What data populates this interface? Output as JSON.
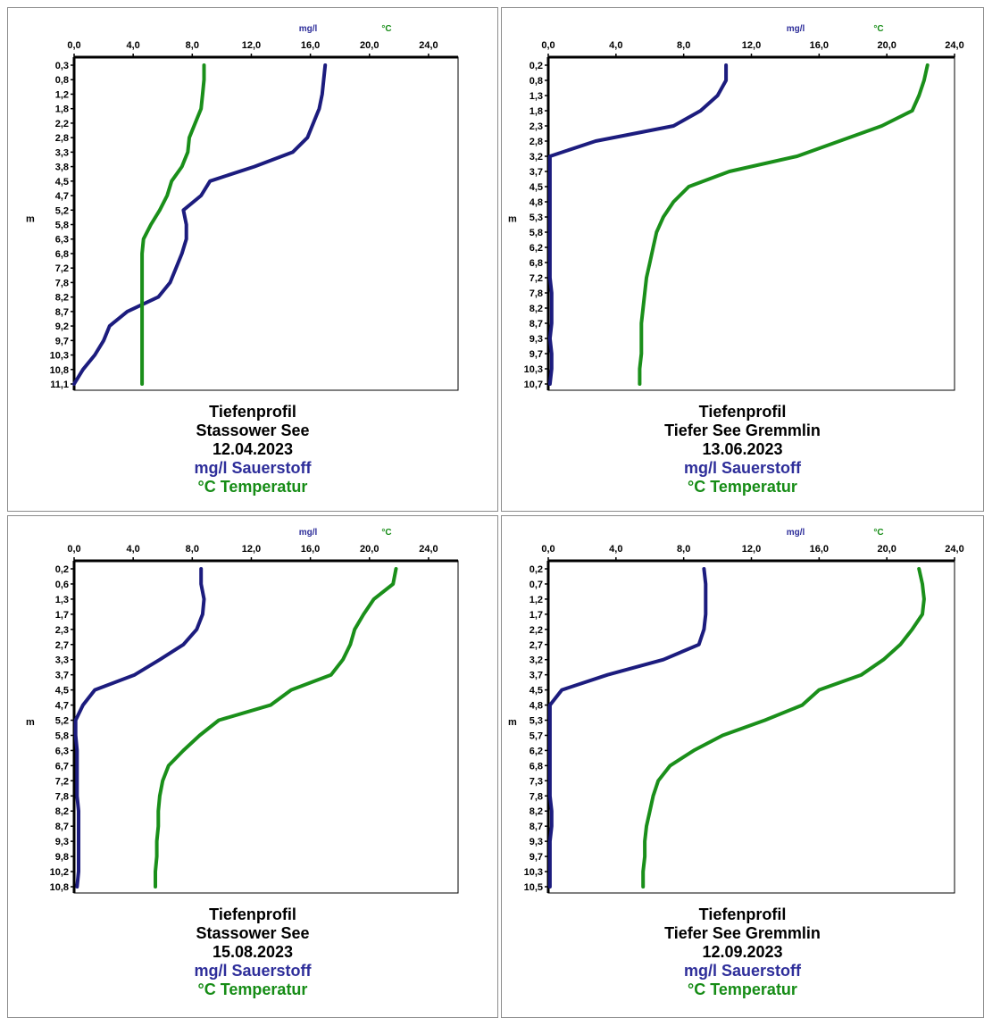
{
  "colors": {
    "oxygen": "#1c1c7e",
    "temperature": "#1a8f1a",
    "oxygen_text": "#2e2e9a",
    "temperature_text": "#168c16"
  },
  "chart_data": [
    {
      "type": "line",
      "title": "Tiefenprofil",
      "lake": "Stassower See",
      "date": "12.04.2023",
      "legend_oxygen": "mg/l Sauerstoff",
      "legend_temperature": "°C Temperatur",
      "unit_oxygen": "mg/l",
      "unit_temperature": "°C",
      "ylabel": "m",
      "xlim": [
        0,
        26
      ],
      "x_ticks": [
        "0,0",
        "4,0",
        "8,0",
        "12,0",
        "16,0",
        "20,0",
        "24,0"
      ],
      "depth_labels": [
        "0,3",
        "0,8",
        "1,2",
        "1,8",
        "2,2",
        "2,8",
        "3,3",
        "3,8",
        "4,5",
        "4,7",
        "5,2",
        "5,8",
        "6,3",
        "6,8",
        "7,2",
        "7,8",
        "8,2",
        "8,7",
        "9,2",
        "9,7",
        "10,3",
        "10,8",
        "11,1"
      ],
      "series": [
        {
          "name": "mg/l Sauerstoff",
          "values": [
            17.0,
            16.9,
            16.8,
            16.6,
            16.2,
            15.8,
            14.8,
            12.2,
            9.2,
            8.6,
            7.4,
            7.6,
            7.6,
            7.3,
            6.9,
            6.5,
            5.7,
            3.6,
            2.4,
            2.0,
            1.4,
            0.6,
            0.0
          ]
        },
        {
          "name": "°C Temperatur",
          "values": [
            8.8,
            8.8,
            8.7,
            8.6,
            8.2,
            7.8,
            7.7,
            7.3,
            6.6,
            6.3,
            5.8,
            5.2,
            4.7,
            4.6,
            4.6,
            4.6,
            4.6,
            4.6,
            4.6,
            4.6,
            4.6,
            4.6,
            4.6
          ]
        }
      ]
    },
    {
      "type": "line",
      "title": "Tiefenprofil",
      "lake": "Tiefer See Gremmlin",
      "date": "13.06.2023",
      "legend_oxygen": "mg/l Sauerstoff",
      "legend_temperature": "°C Temperatur",
      "unit_oxygen": "mg/l",
      "unit_temperature": "°C",
      "ylabel": "m",
      "xlim": [
        0,
        24
      ],
      "x_ticks": [
        "0,0",
        "4,0",
        "8,0",
        "12,0",
        "16,0",
        "20,0",
        "24,0"
      ],
      "depth_labels": [
        "0,2",
        "0,8",
        "1,3",
        "1,8",
        "2,3",
        "2,8",
        "3,2",
        "3,7",
        "4,5",
        "4,8",
        "5,3",
        "5,8",
        "6,2",
        "6,8",
        "7,2",
        "7,8",
        "8,2",
        "8,7",
        "9,3",
        "9,7",
        "10,3",
        "10,7"
      ],
      "series": [
        {
          "name": "mg/l Sauerstoff",
          "values": [
            10.5,
            10.5,
            10.0,
            9.0,
            7.4,
            2.8,
            0.1,
            0.1,
            0.1,
            0.1,
            0.1,
            0.1,
            0.1,
            0.1,
            0.1,
            0.2,
            0.2,
            0.2,
            0.1,
            0.2,
            0.2,
            0.1
          ]
        },
        {
          "name": "°C Temperatur",
          "values": [
            22.4,
            22.2,
            21.9,
            21.5,
            19.7,
            17.2,
            14.7,
            10.7,
            8.3,
            7.4,
            6.8,
            6.4,
            6.2,
            6.0,
            5.8,
            5.7,
            5.6,
            5.5,
            5.5,
            5.5,
            5.4,
            5.4
          ]
        }
      ]
    },
    {
      "type": "line",
      "title": "Tiefenprofil",
      "lake": "Stassower See",
      "date": "15.08.2023",
      "legend_oxygen": "mg/l Sauerstoff",
      "legend_temperature": "°C Temperatur",
      "unit_oxygen": "mg/l",
      "unit_temperature": "°C",
      "ylabel": "m",
      "xlim": [
        0,
        26
      ],
      "x_ticks": [
        "0,0",
        "4,0",
        "8,0",
        "12,0",
        "16,0",
        "20,0",
        "24,0"
      ],
      "depth_labels": [
        "0,2",
        "0,6",
        "1,3",
        "1,7",
        "2,3",
        "2,7",
        "3,3",
        "3,7",
        "4,5",
        "4,7",
        "5,2",
        "5,8",
        "6,3",
        "6,7",
        "7,2",
        "7,8",
        "8,2",
        "8,7",
        "9,3",
        "9,8",
        "10,2",
        "10,8"
      ],
      "series": [
        {
          "name": "mg/l Sauerstoff",
          "values": [
            8.6,
            8.6,
            8.8,
            8.7,
            8.3,
            7.4,
            5.8,
            4.1,
            1.4,
            0.6,
            0.1,
            0.1,
            0.2,
            0.2,
            0.2,
            0.2,
            0.3,
            0.3,
            0.3,
            0.3,
            0.3,
            0.2
          ]
        },
        {
          "name": "°C Temperatur",
          "values": [
            21.8,
            21.6,
            20.3,
            19.6,
            19.0,
            18.7,
            18.2,
            17.4,
            14.7,
            13.3,
            9.8,
            8.5,
            7.4,
            6.4,
            6.0,
            5.8,
            5.7,
            5.7,
            5.6,
            5.6,
            5.5,
            5.5
          ]
        }
      ]
    },
    {
      "type": "line",
      "title": "Tiefenprofil",
      "lake": "Tiefer See Gremmlin",
      "date": "12.09.2023",
      "legend_oxygen": "mg/l Sauerstoff",
      "legend_temperature": "°C Temperatur",
      "unit_oxygen": "mg/l",
      "unit_temperature": "°C",
      "ylabel": "m",
      "xlim": [
        0,
        24
      ],
      "x_ticks": [
        "0,0",
        "4,0",
        "8,0",
        "12,0",
        "16,0",
        "20,0",
        "24,0"
      ],
      "depth_labels": [
        "0,2",
        "0,7",
        "1,2",
        "1,7",
        "2,2",
        "2,7",
        "3,2",
        "3,7",
        "4,5",
        "4,8",
        "5,3",
        "5,7",
        "6,2",
        "6,8",
        "7,3",
        "7,8",
        "8,2",
        "8,7",
        "9,3",
        "9,7",
        "10,3",
        "10,5"
      ],
      "series": [
        {
          "name": "mg/l Sauerstoff",
          "values": [
            9.2,
            9.3,
            9.3,
            9.3,
            9.2,
            8.9,
            6.8,
            3.5,
            0.8,
            0.1,
            0.1,
            0.1,
            0.1,
            0.1,
            0.1,
            0.1,
            0.2,
            0.2,
            0.1,
            0.1,
            0.1,
            0.1
          ]
        },
        {
          "name": "°C Temperatur",
          "values": [
            21.9,
            22.1,
            22.2,
            22.1,
            21.5,
            20.8,
            19.8,
            18.5,
            16.0,
            15.0,
            12.8,
            10.3,
            8.6,
            7.2,
            6.5,
            6.2,
            6.0,
            5.8,
            5.7,
            5.7,
            5.6,
            5.6
          ]
        }
      ]
    }
  ]
}
